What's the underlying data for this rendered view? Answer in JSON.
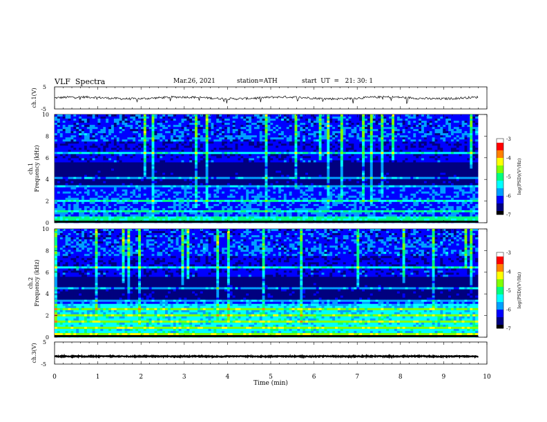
{
  "header": {
    "title": "VLF  Spectra",
    "date": "Mar.26, 2021",
    "station": "station=ATH",
    "start": "start  UT  =   21: 30: 1"
  },
  "chart_data": [
    {
      "type": "line",
      "name": "ch1-waveform",
      "ylabel": "ch.1(V)",
      "ylim": [
        -5,
        5
      ],
      "yticks": [
        "5",
        "-5"
      ],
      "xlim": [
        0,
        10
      ],
      "series": [
        {
          "color": "#000000",
          "baseline": 0,
          "amplitude": 0.5
        }
      ]
    },
    {
      "type": "heatmap",
      "name": "ch1-spectrogram",
      "ylabel": "ch.1\nFrequency  (kHz)",
      "ylim": [
        0,
        10
      ],
      "yticks": [
        "0",
        "2",
        "4",
        "6",
        "8",
        "10"
      ],
      "xlim": [
        0,
        9.8
      ],
      "colorbar": {
        "label": "log(PSD)(V²/Hz)",
        "range": [
          -7,
          -3
        ],
        "ticks": [
          "-3",
          "-4",
          "-5",
          "-6",
          "-7"
        ]
      },
      "bands_khz": [
        0.3,
        0.5,
        1.0,
        2.0,
        2.1,
        3.3,
        4.2,
        5.2,
        6.5
      ]
    },
    {
      "type": "heatmap",
      "name": "ch2-spectrogram",
      "ylabel": "ch.2\nFrequency  (kHz)",
      "ylim": [
        0,
        10
      ],
      "yticks": [
        "0",
        "2",
        "4",
        "6",
        "8",
        "10"
      ],
      "xlim": [
        0,
        9.8
      ],
      "colorbar": {
        "label": "log(PSD)(V²/Hz)",
        "range": [
          -7,
          -3
        ],
        "ticks": [
          "-3",
          "-4",
          "-5",
          "-6",
          "-7"
        ]
      },
      "bands_khz": [
        0.3,
        0.8,
        1.5,
        2.0,
        2.6,
        3.3,
        4.5,
        5.0,
        6.5
      ]
    },
    {
      "type": "line",
      "name": "ch3-waveform",
      "ylabel": "ch.3(V)",
      "ylim": [
        -5,
        5
      ],
      "yticks": [
        "5",
        "-5"
      ],
      "xlim": [
        0,
        10
      ],
      "series": [
        {
          "color": "#000000",
          "baseline": -1.5,
          "amplitude": 0.2
        }
      ]
    }
  ],
  "x_axis": {
    "label": "Time  (min)",
    "ticks": [
      "0",
      "1",
      "2",
      "3",
      "4",
      "5",
      "6",
      "7",
      "8",
      "9",
      "10"
    ]
  },
  "colors": {
    "cmap": [
      "#000000",
      "#00007f",
      "#0000ff",
      "#00a0ff",
      "#00ffff",
      "#00ff80",
      "#80ff00",
      "#ffff00",
      "#ff8000",
      "#ff0000",
      "#ffffff"
    ]
  }
}
